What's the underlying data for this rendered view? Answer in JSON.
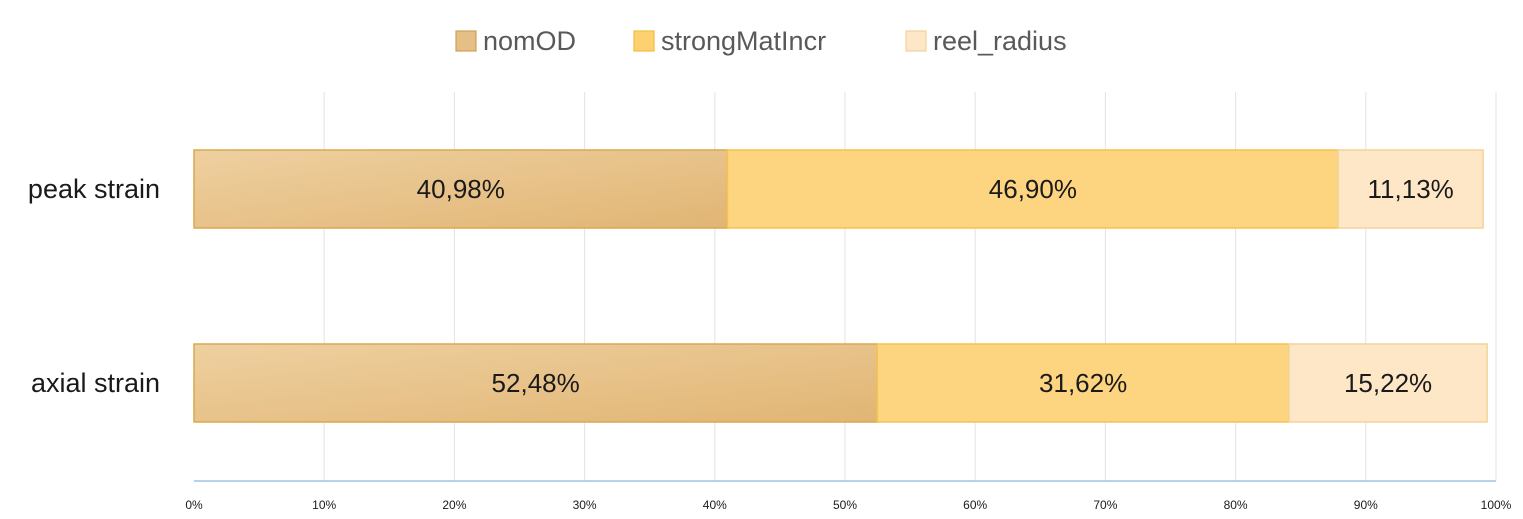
{
  "chart_data": {
    "type": "bar",
    "orientation": "horizontal",
    "stacked": true,
    "categories": [
      "peak strain",
      "axial strain"
    ],
    "series": [
      {
        "name": "nomOD",
        "values": [
          40.98,
          52.48
        ],
        "labels": [
          "40,98%",
          "52,48%"
        ],
        "color": "#e8c48c"
      },
      {
        "name": "strongMatIncr",
        "values": [
          46.9,
          31.62
        ],
        "labels": [
          "46,90%",
          "31,62%"
        ],
        "color": "#fdd580"
      },
      {
        "name": "reel_radius",
        "values": [
          11.13,
          15.22
        ],
        "labels": [
          "11,13%",
          "15,22%"
        ],
        "color": "#fde7c7"
      }
    ],
    "xlim": [
      0,
      100
    ],
    "x_ticks": [
      0,
      10,
      20,
      30,
      40,
      50,
      60,
      70,
      80,
      90,
      100
    ],
    "x_tick_labels": [
      "0%",
      "10%",
      "20%",
      "30%",
      "40%",
      "50%",
      "60%",
      "70%",
      "80%",
      "90%",
      "100%"
    ],
    "grid": true,
    "legend": "top-center",
    "title": "",
    "xlabel": "",
    "ylabel": ""
  }
}
